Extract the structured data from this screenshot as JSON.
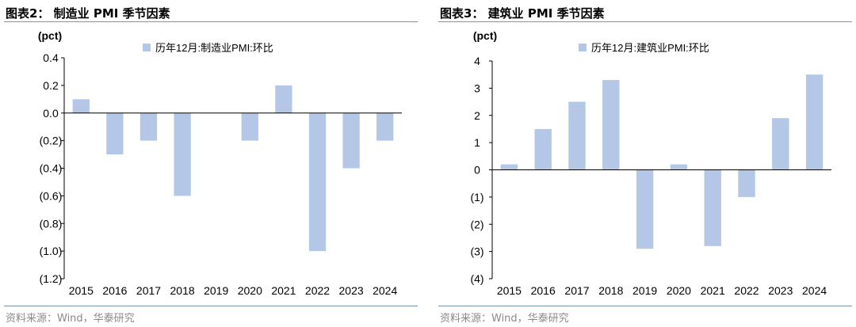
{
  "source_text": "资料来源：Wind，华泰研究",
  "chart_data": [
    {
      "type": "bar",
      "figure_title": "图表2：  制造业 PMI 季节因素",
      "ylabel": "(pct)",
      "legend": "历年12月:制造业PMI:环比",
      "legend_position": "top",
      "categories": [
        "2015",
        "2016",
        "2017",
        "2018",
        "2019",
        "2020",
        "2021",
        "2022",
        "2023",
        "2024"
      ],
      "series": [
        {
          "name": "历年12月:制造业PMI:环比",
          "values": [
            0.1,
            -0.3,
            -0.2,
            -0.6,
            0.0,
            -0.2,
            0.2,
            -1.0,
            -0.4,
            -0.2
          ]
        }
      ],
      "ylim": [
        -1.2,
        0.4
      ],
      "yticks": [
        0.4,
        0.2,
        0.0,
        -0.2,
        -0.4,
        -0.6,
        -0.8,
        -1.0,
        -1.2
      ],
      "ytick_labels": [
        "0.4",
        "0.2",
        "0.0",
        "(0.2)",
        "(0.4)",
        "(0.6)",
        "(0.8)",
        "(1.0)",
        "(1.2)"
      ],
      "grid": false,
      "bar_color": "#b4c7e7",
      "rule_color": "#7b93b3"
    },
    {
      "type": "bar",
      "figure_title": "图表3：  建筑业 PMI 季节因素",
      "ylabel": "(pct)",
      "legend": "历年12月:建筑业PMI:环比",
      "legend_position": "top",
      "categories": [
        "2015",
        "2016",
        "2017",
        "2018",
        "2019",
        "2020",
        "2021",
        "2022",
        "2023",
        "2024"
      ],
      "series": [
        {
          "name": "历年12月:建筑业PMI:环比",
          "values": [
            0.2,
            1.5,
            2.5,
            3.3,
            -2.9,
            0.2,
            -2.8,
            -1.0,
            1.9,
            3.5
          ]
        }
      ],
      "ylim": [
        -4,
        4
      ],
      "yticks": [
        4,
        3,
        2,
        1,
        0,
        -1,
        -2,
        -3,
        -4
      ],
      "ytick_labels": [
        "4",
        "3",
        "2",
        "1",
        "0",
        "(1)",
        "(2)",
        "(3)",
        "(4)"
      ],
      "grid": false,
      "bar_color": "#b4c7e7",
      "rule_color": "#7b93b3"
    }
  ]
}
